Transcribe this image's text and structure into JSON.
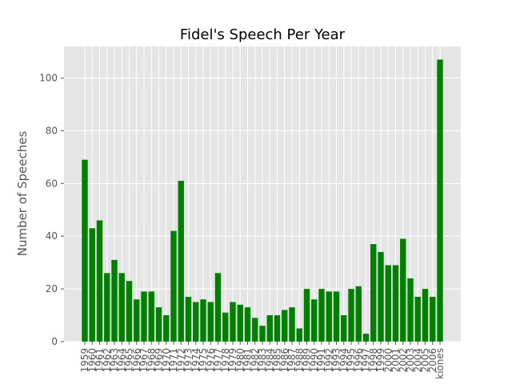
{
  "chart_data": {
    "type": "bar",
    "title": "Fidel's Speech Per Year",
    "xlabel": "",
    "ylabel": "Number of Speeches",
    "categories": [
      "1959",
      "1960",
      "1961",
      "1962",
      "1963",
      "1964",
      "1965",
      "1966",
      "1967",
      "1968",
      "1969",
      "1970",
      "1971",
      "1972",
      "1973",
      "1974",
      "1975",
      "1976",
      "1977",
      "1978",
      "1979",
      "1980",
      "1981",
      "1982",
      "1983",
      "1984",
      "1985",
      "1986",
      "1987",
      "1988",
      "1989",
      "1990",
      "1991",
      "1992",
      "1993",
      "1994",
      "1995",
      "1996",
      "1997",
      "1998",
      "1999",
      "2000",
      "2001",
      "2002",
      "2003",
      "2004",
      "2005",
      "2006",
      "kiones"
    ],
    "values": [
      69,
      43,
      46,
      26,
      31,
      26,
      23,
      16,
      19,
      19,
      13,
      10,
      42,
      61,
      17,
      15,
      16,
      15,
      26,
      11,
      15,
      14,
      13,
      9,
      6,
      10,
      10,
      12,
      13,
      5,
      20,
      16,
      20,
      19,
      19,
      10,
      20,
      21,
      3,
      37,
      34,
      29,
      29,
      39,
      24,
      17,
      20,
      17,
      107
    ],
    "ylim": [
      0,
      112
    ],
    "yticks": [
      0,
      20,
      40,
      60,
      80,
      100
    ],
    "grid": true,
    "bar_color": "#008000",
    "background_color": "#e5e5e5",
    "grid_color": "#ffffff"
  }
}
